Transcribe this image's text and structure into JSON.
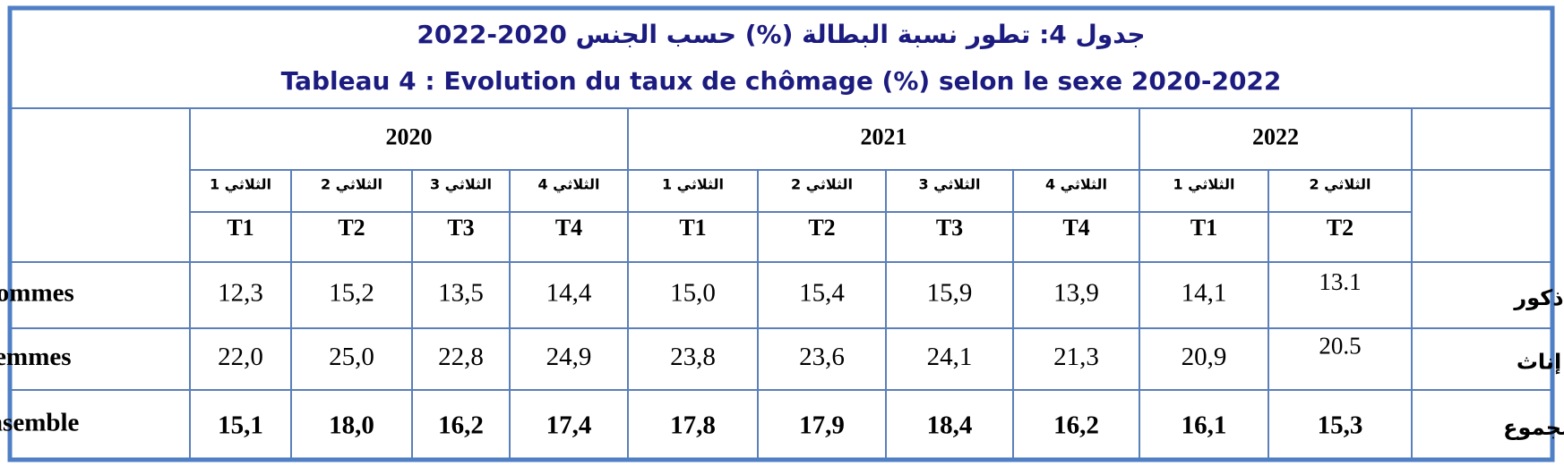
{
  "header": {
    "title_ar": "جدول 4: تطور نسبة البطالة (%) حسب الجنس 2020-2022",
    "title_fr": "Tableau 4 : Evolution du taux de chômage (%) selon le sexe 2020-2022"
  },
  "table": {
    "years": [
      "2020",
      "2021",
      "2022"
    ],
    "quarters_ar": [
      "الثلاثي 1",
      "الثلاثي 2",
      "الثلاثي 3",
      "الثلاثي 4",
      "الثلاثي 1",
      "الثلاثي 2",
      "الثلاثي 3",
      "الثلاثي 4",
      "الثلاثي 1",
      "الثلاثي 2"
    ],
    "quarters": [
      "T1",
      "T2",
      "T3",
      "T4",
      "T1",
      "T2",
      "T3",
      "T4",
      "T1",
      "T2"
    ],
    "rows": [
      {
        "label": "Hommes",
        "label_ar": "ذكور",
        "values": [
          "12,3",
          "15,2",
          "13,5",
          "14,4",
          "15,0",
          "15,4",
          "15,9",
          "13,9",
          "14,1",
          "13.1"
        ]
      },
      {
        "label": "Femmes",
        "label_ar": "إناث",
        "values": [
          "22,0",
          "25,0",
          "22,8",
          "24,9",
          "23,8",
          "23,6",
          "24,1",
          "21,3",
          "20,9",
          "20.5"
        ]
      },
      {
        "label": "Ensemble",
        "label_ar": "مجموع",
        "values": [
          "15,1",
          "18,0",
          "16,2",
          "17,4",
          "17,8",
          "17,9",
          "18,4",
          "16,2",
          "16,1",
          "15,3"
        ]
      }
    ]
  }
}
